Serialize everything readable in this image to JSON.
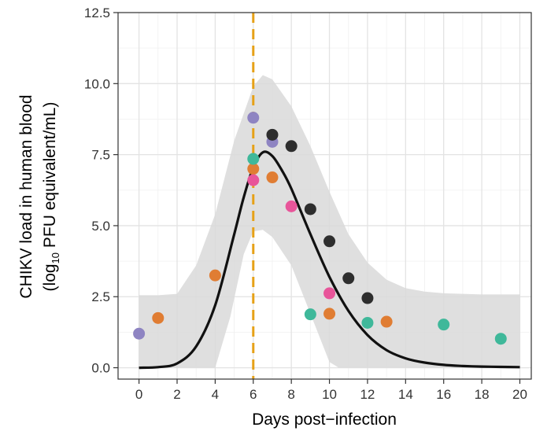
{
  "chart_data": {
    "type": "scatter",
    "title": "",
    "xlabel": "Days post−infection",
    "ylabel_line1": "CHIKV load in human blood",
    "ylabel_line2_prefix": "(log",
    "ylabel_line2_subscript": "10",
    "ylabel_line2_suffix": " PFU equivalent/mL)",
    "xlim": [
      -1.1,
      20.6
    ],
    "ylim": [
      -0.4,
      12.5
    ],
    "x_ticks": [
      0,
      2,
      4,
      6,
      8,
      10,
      12,
      14,
      16,
      18,
      20
    ],
    "x_tick_labels": [
      "0",
      "2",
      "4",
      "6",
      "8",
      "10",
      "12",
      "14",
      "16",
      "18",
      "20"
    ],
    "y_ticks": [
      0,
      2.5,
      5,
      7.5,
      10,
      12.5
    ],
    "y_tick_labels": [
      "0.0",
      "2.5",
      "5.0",
      "7.5",
      "10.0",
      "12.5"
    ],
    "grid": true,
    "vline": {
      "x": 6,
      "color": "#E6A117",
      "style": "dashed"
    },
    "fit_curve": {
      "color": "#111111",
      "points": [
        [
          0,
          0.0
        ],
        [
          1,
          0.02
        ],
        [
          2,
          0.15
        ],
        [
          3,
          0.75
        ],
        [
          4,
          2.2
        ],
        [
          5,
          4.7
        ],
        [
          5.5,
          6.0
        ],
        [
          6,
          7.05
        ],
        [
          6.5,
          7.58
        ],
        [
          7,
          7.45
        ],
        [
          7.5,
          6.95
        ],
        [
          8,
          6.3
        ],
        [
          9,
          4.7
        ],
        [
          10,
          3.2
        ],
        [
          11,
          2.0
        ],
        [
          12,
          1.15
        ],
        [
          13,
          0.62
        ],
        [
          14,
          0.33
        ],
        [
          15,
          0.18
        ],
        [
          16,
          0.1
        ],
        [
          17,
          0.06
        ],
        [
          18,
          0.04
        ],
        [
          19,
          0.03
        ],
        [
          20,
          0.02
        ]
      ]
    },
    "ribbon": {
      "color": "#d9d9d9",
      "upper": [
        [
          0,
          2.55
        ],
        [
          1,
          2.55
        ],
        [
          2,
          2.6
        ],
        [
          3,
          3.6
        ],
        [
          4,
          5.4
        ],
        [
          5,
          8.0
        ],
        [
          6,
          9.9
        ],
        [
          6.5,
          10.3
        ],
        [
          7,
          10.15
        ],
        [
          8,
          9.2
        ],
        [
          9,
          7.8
        ],
        [
          10,
          6.2
        ],
        [
          11,
          4.7
        ],
        [
          12,
          3.7
        ],
        [
          13,
          3.1
        ],
        [
          14,
          2.8
        ],
        [
          15,
          2.68
        ],
        [
          16,
          2.62
        ],
        [
          17,
          2.6
        ],
        [
          18,
          2.58
        ],
        [
          19,
          2.58
        ],
        [
          20,
          2.58
        ]
      ],
      "lower": [
        [
          0,
          0
        ],
        [
          1,
          0
        ],
        [
          2,
          0
        ],
        [
          3,
          0
        ],
        [
          4,
          0.0
        ],
        [
          4.8,
          1.8
        ],
        [
          5.5,
          4.0
        ],
        [
          6,
          4.8
        ],
        [
          6.5,
          4.85
        ],
        [
          7,
          4.6
        ],
        [
          8,
          3.6
        ],
        [
          9,
          1.9
        ],
        [
          10,
          0.2
        ],
        [
          10.5,
          0
        ],
        [
          11,
          0
        ],
        [
          12,
          0
        ],
        [
          13,
          0
        ],
        [
          14,
          0
        ],
        [
          16,
          0
        ],
        [
          18,
          0
        ],
        [
          20,
          0
        ]
      ]
    },
    "series": [
      {
        "color": "#8E84C2",
        "points": [
          {
            "x": 0,
            "y": 1.2
          },
          {
            "x": 6,
            "y": 8.8
          },
          {
            "x": 7,
            "y": 7.95
          }
        ]
      },
      {
        "color": "#E07D33",
        "points": [
          {
            "x": 1,
            "y": 1.75
          },
          {
            "x": 4,
            "y": 3.25
          },
          {
            "x": 6,
            "y": 7.0
          },
          {
            "x": 7,
            "y": 6.7
          },
          {
            "x": 10,
            "y": 1.9
          },
          {
            "x": 13,
            "y": 1.62
          }
        ]
      },
      {
        "color": "#3FB89A",
        "points": [
          {
            "x": 6,
            "y": 7.35
          },
          {
            "x": 9,
            "y": 1.88
          },
          {
            "x": 12,
            "y": 1.58
          },
          {
            "x": 16,
            "y": 1.52
          },
          {
            "x": 19,
            "y": 1.02
          }
        ]
      },
      {
        "color": "#E8559A",
        "points": [
          {
            "x": 6,
            "y": 6.6
          },
          {
            "x": 8,
            "y": 5.68
          },
          {
            "x": 10,
            "y": 2.62
          }
        ]
      },
      {
        "color": "#2E2E2E",
        "points": [
          {
            "x": 7,
            "y": 8.2
          },
          {
            "x": 8,
            "y": 7.8
          },
          {
            "x": 9,
            "y": 5.58
          },
          {
            "x": 10,
            "y": 4.45
          },
          {
            "x": 11,
            "y": 3.15
          },
          {
            "x": 12,
            "y": 2.45
          }
        ]
      }
    ]
  }
}
